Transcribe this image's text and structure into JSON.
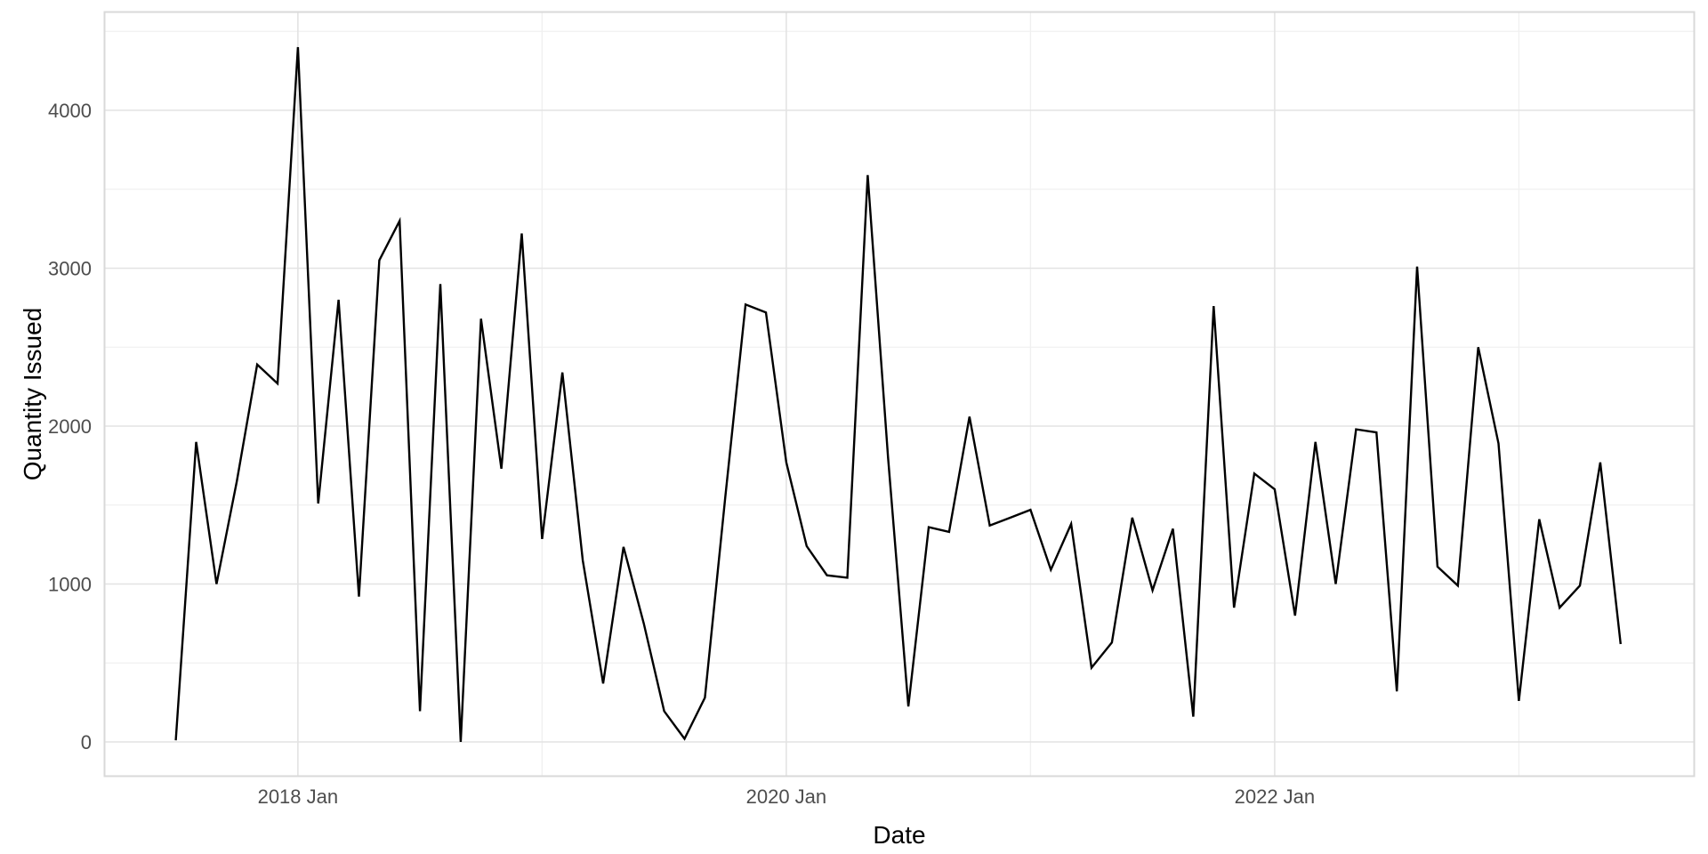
{
  "chart_data": {
    "type": "line",
    "title": "",
    "xlabel": "Date",
    "ylabel": "Quantity Issued",
    "legend_position": "none",
    "grid": "major and minor, light gray on white panel with light gray panel border",
    "x_major_tick_labels": [
      "2018 Jan",
      "2020 Jan",
      "2022 Jan"
    ],
    "x_major_tick_months": [
      "2018-01",
      "2020-01",
      "2022-01"
    ],
    "x_minor_grid_months": [
      "2019-01",
      "2021-01",
      "2023-01"
    ],
    "yticks": [
      0,
      1000,
      2000,
      3000,
      4000
    ],
    "ytick_labels": [
      "0",
      "1000",
      "2000",
      "3000",
      "4000"
    ],
    "ylim": [
      -220,
      4620
    ],
    "x": [
      "2017-07",
      "2017-08",
      "2017-09",
      "2017-10",
      "2017-11",
      "2017-12",
      "2018-01",
      "2018-02",
      "2018-03",
      "2018-04",
      "2018-05",
      "2018-06",
      "2018-07",
      "2018-08",
      "2018-09",
      "2018-10",
      "2018-11",
      "2018-12",
      "2019-01",
      "2019-02",
      "2019-03",
      "2019-04",
      "2019-05",
      "2019-06",
      "2019-07",
      "2019-08",
      "2019-09",
      "2019-10",
      "2019-11",
      "2019-12",
      "2020-01",
      "2020-02",
      "2020-03",
      "2020-04",
      "2020-05",
      "2020-06",
      "2020-07",
      "2020-08",
      "2020-09",
      "2020-10",
      "2020-11",
      "2020-12",
      "2021-01",
      "2021-02",
      "2021-03",
      "2021-04",
      "2021-05",
      "2021-06",
      "2021-07",
      "2021-08",
      "2021-09",
      "2021-10",
      "2021-11",
      "2021-12",
      "2022-01",
      "2022-02",
      "2022-03",
      "2022-04",
      "2022-05",
      "2022-06",
      "2022-07",
      "2022-08",
      "2022-09",
      "2022-10",
      "2022-11",
      "2022-12",
      "2023-01",
      "2023-02",
      "2023-03",
      "2023-04",
      "2023-05",
      "2023-06"
    ],
    "values": [
      10,
      1900,
      1000,
      1650,
      2390,
      2270,
      4400,
      1510,
      2800,
      920,
      3050,
      3300,
      195,
      2900,
      0,
      2680,
      1730,
      3220,
      1285,
      2340,
      1150,
      370,
      1235,
      750,
      195,
      20,
      280,
      1550,
      2770,
      2720,
      1770,
      1240,
      1055,
      1040,
      3590,
      1800,
      225,
      1360,
      1330,
      2060,
      1370,
      1420,
      1470,
      1090,
      1380,
      470,
      630,
      1420,
      960,
      1350,
      160,
      2760,
      850,
      1700,
      1600,
      800,
      1900,
      1000,
      1980,
      1960,
      320,
      3010,
      1110,
      990,
      2500,
      1890,
      260,
      1410,
      850,
      990,
      1770,
      620
    ],
    "colors": {
      "series_line": "#000000",
      "panel_background": "#ffffff",
      "panel_border": "#d9d9d9",
      "grid_major": "#e3e3e3",
      "grid_minor": "#f0f0f0",
      "tick_label_text": "#4d4d4d",
      "axis_title_text": "#000000"
    }
  }
}
